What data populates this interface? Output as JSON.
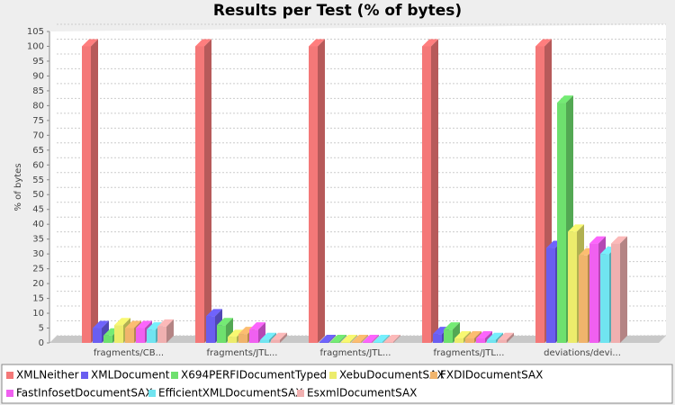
{
  "chart_data": {
    "type": "bar3d",
    "title": "Results per Test (% of bytes)",
    "y_label": "% of bytes",
    "categories": [
      "fragments/CB...",
      "fragments/JTL...",
      "fragments/JTL...",
      "fragments/JTL...",
      "deviations/devi..."
    ],
    "series": [
      {
        "name": "XMLNeither",
        "color": "#f47878",
        "values": [
          100,
          100,
          100,
          100,
          100
        ]
      },
      {
        "name": "XMLDocument",
        "color": "#6a5ef0",
        "values": [
          5,
          9,
          0.3,
          3,
          32
        ]
      },
      {
        "name": "X694PERFIDocumentTyped",
        "color": "#6ee06e",
        "values": [
          2.5,
          6,
          0.3,
          4.5,
          81
        ]
      },
      {
        "name": "XebuDocumentSAX",
        "color": "#ecec6c",
        "values": [
          6,
          2,
          0.3,
          1.5,
          37.5
        ]
      },
      {
        "name": "FXDIDocumentSAX",
        "color": "#f0b46c",
        "values": [
          5,
          3,
          0.3,
          1.5,
          29.5
        ]
      },
      {
        "name": "FastInfosetDocumentSAX",
        "color": "#f060f0",
        "values": [
          5,
          4.5,
          0.3,
          1.5,
          33.5
        ]
      },
      {
        "name": "EfficientXMLDocumentSAX",
        "color": "#70e4f0",
        "values": [
          4.5,
          1,
          0.3,
          1,
          30
        ]
      },
      {
        "name": "EsxmlDocumentSAX",
        "color": "#f0b0b0",
        "values": [
          5.5,
          1,
          0.3,
          1,
          33.5
        ]
      }
    ],
    "ylim": [
      0,
      105
    ],
    "yticks": [
      0,
      5,
      10,
      15,
      20,
      25,
      30,
      35,
      40,
      45,
      50,
      55,
      60,
      65,
      70,
      75,
      80,
      85,
      90,
      95,
      100,
      105
    ],
    "grid": true
  }
}
